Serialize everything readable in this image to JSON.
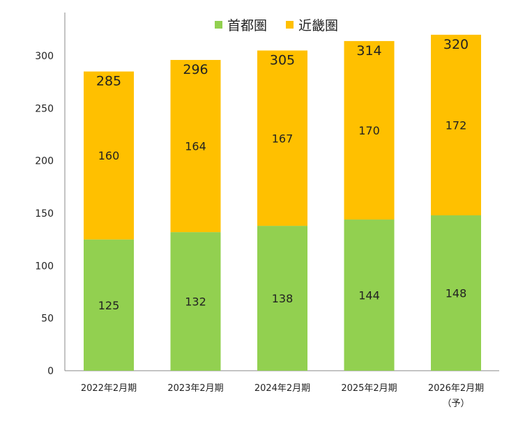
{
  "chart_data": {
    "type": "bar",
    "stacked": true,
    "categories": [
      "2022年2月期",
      "2023年2月期",
      "2024年2月期",
      "2025年2月期",
      "2026年2月期"
    ],
    "category_notes": [
      "",
      "",
      "",
      "",
      "（予）"
    ],
    "series": [
      {
        "name": "首都圏",
        "values": [
          125,
          132,
          138,
          144,
          148
        ],
        "color": "#92d050"
      },
      {
        "name": "近畿圏",
        "values": [
          160,
          164,
          167,
          170,
          172
        ],
        "color": "#ffc000"
      }
    ],
    "totals": [
      285,
      296,
      305,
      314,
      320
    ],
    "yticks": [
      0,
      50,
      100,
      150,
      200,
      250,
      300
    ],
    "ylim": [
      0,
      340
    ],
    "grid": false,
    "legend_position": "top-center"
  }
}
